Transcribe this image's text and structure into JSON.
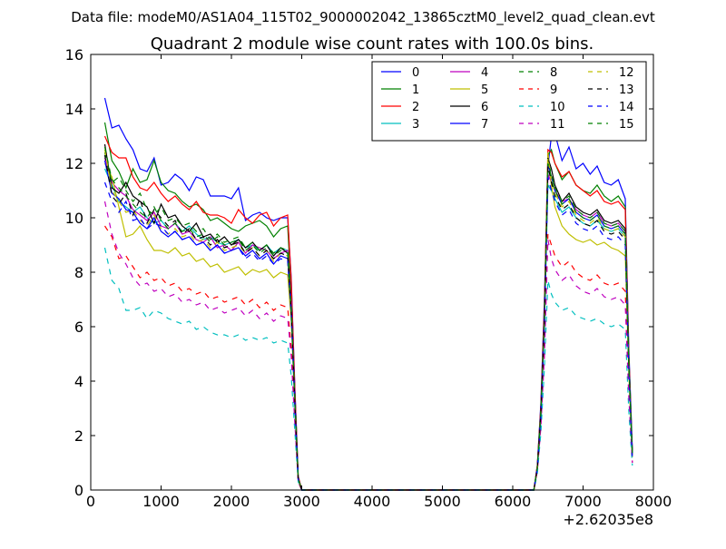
{
  "chart_data": {
    "type": "line",
    "suptitle": "Data file: modeM0/AS1A04_115T02_9000002042_13865cztM0_level2_quad_clean.evt",
    "title": "Quadrant 2 module wise count rates with 100.0s bins.",
    "xlabel": "",
    "ylabel": "",
    "xlim": [
      0,
      8000
    ],
    "ylim": [
      0,
      16
    ],
    "x_offset_label": "+2.62035e8",
    "xticks": [
      0,
      1000,
      2000,
      3000,
      4000,
      5000,
      6000,
      7000,
      8000
    ],
    "yticks": [
      0,
      2,
      4,
      6,
      8,
      10,
      12,
      14,
      16
    ],
    "legend_location": "top-right",
    "x": [
      200,
      300,
      400,
      500,
      600,
      700,
      800,
      900,
      1000,
      1100,
      1200,
      1300,
      1400,
      1500,
      1600,
      1700,
      1800,
      1900,
      2000,
      2100,
      2200,
      2300,
      2400,
      2500,
      2600,
      2700,
      2800,
      2850,
      2900,
      2950,
      3000,
      3100,
      6300,
      6350,
      6400,
      6450,
      6500,
      6550,
      6600,
      6700,
      6800,
      6900,
      7000,
      7100,
      7200,
      7300,
      7400,
      7500,
      7600,
      7650,
      7700
    ],
    "series": [
      {
        "name": "0",
        "color": "#0000ff",
        "dash": "solid",
        "values": [
          14.4,
          13.3,
          13.4,
          12.9,
          12.5,
          11.8,
          11.7,
          12.2,
          11.2,
          11.3,
          11.6,
          11.4,
          11.0,
          11.5,
          11.4,
          10.8,
          10.8,
          10.8,
          10.7,
          11.1,
          9.9,
          10.1,
          10.2,
          10.0,
          9.9,
          10.0,
          10.0,
          7.8,
          3.9,
          0.5,
          0,
          0,
          0,
          0.9,
          3.2,
          7.0,
          11.9,
          13.0,
          13.1,
          12.1,
          12.6,
          11.8,
          12.0,
          11.6,
          11.9,
          11.3,
          11.2,
          11.4,
          10.7,
          5.2,
          1.5
        ]
      },
      {
        "name": "1",
        "color": "#008000",
        "dash": "solid",
        "values": [
          13.5,
          12.1,
          11.7,
          11.1,
          11.8,
          11.3,
          11.4,
          12.1,
          11.3,
          11.0,
          10.9,
          10.6,
          10.4,
          10.5,
          10.3,
          9.9,
          10.0,
          9.8,
          9.6,
          9.5,
          9.7,
          9.8,
          9.9,
          9.7,
          9.3,
          9.6,
          9.7,
          7.3,
          3.7,
          0.5,
          0,
          0,
          0,
          0.9,
          3.0,
          6.5,
          12.3,
          12.5,
          12.0,
          11.4,
          11.7,
          11.2,
          11.0,
          10.9,
          11.2,
          10.8,
          10.6,
          10.8,
          10.4,
          5.0,
          1.4
        ]
      },
      {
        "name": "2",
        "color": "#ff0000",
        "dash": "solid",
        "values": [
          13.0,
          12.4,
          12.2,
          12.2,
          11.5,
          11.1,
          11.0,
          11.3,
          10.9,
          10.6,
          10.8,
          10.5,
          10.3,
          10.6,
          10.2,
          10.1,
          10.1,
          10.0,
          9.8,
          10.3,
          10.0,
          9.8,
          10.1,
          10.2,
          9.7,
          10.0,
          10.1,
          7.7,
          3.8,
          0.5,
          0,
          0,
          0,
          0.9,
          3.1,
          6.8,
          12.5,
          12.4,
          12.0,
          11.5,
          11.7,
          11.2,
          11.0,
          10.8,
          11.0,
          10.6,
          10.5,
          10.6,
          10.3,
          5.0,
          1.4
        ]
      },
      {
        "name": "3",
        "color": "#00bfbf",
        "dash": "solid",
        "values": [
          11.8,
          11.2,
          10.6,
          10.4,
          10.2,
          10.4,
          10.0,
          9.8,
          9.9,
          9.6,
          9.8,
          9.5,
          9.7,
          9.4,
          9.2,
          9.3,
          9.1,
          9.0,
          9.1,
          9.2,
          8.9,
          9.0,
          8.8,
          9.0,
          8.7,
          8.9,
          8.8,
          6.8,
          3.4,
          0.4,
          0,
          0,
          0,
          0.8,
          2.9,
          6.2,
          11.2,
          11.0,
          10.7,
          10.2,
          10.4,
          10.0,
          9.8,
          9.7,
          9.9,
          9.6,
          9.5,
          9.6,
          9.3,
          4.6,
          1.3
        ]
      },
      {
        "name": "4",
        "color": "#bf00bf",
        "dash": "solid",
        "values": [
          12.2,
          11.3,
          11.0,
          10.8,
          10.3,
          10.1,
          9.9,
          10.2,
          9.7,
          9.6,
          9.8,
          9.4,
          9.5,
          9.2,
          9.1,
          9.3,
          8.9,
          9.0,
          8.8,
          9.1,
          8.7,
          9.0,
          8.9,
          8.8,
          8.5,
          8.7,
          8.8,
          6.9,
          3.5,
          0.4,
          0,
          0,
          0,
          0.8,
          2.9,
          6.4,
          11.6,
          11.3,
          11.0,
          10.6,
          10.7,
          10.3,
          10.1,
          10.0,
          10.2,
          9.8,
          9.7,
          9.8,
          9.5,
          4.7,
          1.3
        ]
      },
      {
        "name": "5",
        "color": "#bfbf00",
        "dash": "solid",
        "values": [
          12.0,
          11.5,
          10.4,
          9.3,
          9.4,
          9.7,
          9.2,
          8.8,
          8.8,
          8.7,
          8.9,
          8.6,
          8.7,
          8.4,
          8.5,
          8.2,
          8.3,
          8.0,
          8.1,
          8.2,
          7.9,
          8.1,
          8.0,
          8.1,
          7.8,
          8.0,
          7.9,
          6.2,
          3.2,
          0.4,
          0,
          0,
          0,
          0.8,
          2.8,
          6.0,
          12.4,
          11.2,
          10.4,
          9.7,
          9.4,
          9.2,
          9.1,
          9.2,
          9.0,
          9.1,
          8.9,
          8.8,
          8.6,
          4.3,
          1.2
        ]
      },
      {
        "name": "6",
        "color": "#000000",
        "dash": "solid",
        "values": [
          12.7,
          11.1,
          10.9,
          11.3,
          10.8,
          10.6,
          10.4,
          9.8,
          10.5,
          10.0,
          10.1,
          9.7,
          9.5,
          9.8,
          9.3,
          9.4,
          9.1,
          9.3,
          9.0,
          9.2,
          8.9,
          9.1,
          8.8,
          9.0,
          8.6,
          8.9,
          8.7,
          6.6,
          3.3,
          0.4,
          0,
          0,
          0,
          0.8,
          2.9,
          6.3,
          12.2,
          11.8,
          11.2,
          10.6,
          10.9,
          10.4,
          10.2,
          10.1,
          10.3,
          9.9,
          9.8,
          9.9,
          9.6,
          4.7,
          1.3
        ]
      },
      {
        "name": "7",
        "color": "#0000ff",
        "dash": "solid",
        "values": [
          12.1,
          10.9,
          10.7,
          10.3,
          10.2,
          9.8,
          9.6,
          10.0,
          9.5,
          9.3,
          9.5,
          9.2,
          9.3,
          9.0,
          9.1,
          8.8,
          9.0,
          8.7,
          8.8,
          8.9,
          8.6,
          8.8,
          8.5,
          8.7,
          8.3,
          8.6,
          8.5,
          6.5,
          3.3,
          0.4,
          0,
          0,
          0,
          0.8,
          2.8,
          6.1,
          12.0,
          11.5,
          11.0,
          10.5,
          10.7,
          10.2,
          10.0,
          9.9,
          10.1,
          9.7,
          9.6,
          9.7,
          9.4,
          4.6,
          1.3
        ]
      },
      {
        "name": "8",
        "color": "#008000",
        "dash": "dashed",
        "values": [
          12.4,
          11.3,
          11.5,
          11.0,
          10.6,
          10.9,
          10.3,
          10.1,
          10.4,
          9.9,
          10.0,
          9.7,
          9.8,
          9.5,
          9.6,
          9.2,
          9.4,
          9.1,
          9.2,
          9.3,
          8.9,
          9.1,
          8.8,
          9.0,
          8.7,
          8.9,
          8.8,
          6.8,
          3.4,
          0.4,
          0,
          0,
          0,
          0.8,
          2.9,
          6.3,
          12.1,
          11.6,
          11.1,
          10.6,
          10.8,
          10.3,
          10.1,
          10.0,
          10.2,
          9.8,
          9.7,
          9.8,
          9.5,
          4.7,
          1.3
        ]
      },
      {
        "name": "9",
        "color": "#ff0000",
        "dash": "dashed",
        "values": [
          9.7,
          9.3,
          8.5,
          8.6,
          8.2,
          7.8,
          8.0,
          7.7,
          7.8,
          7.5,
          7.6,
          7.3,
          7.4,
          7.2,
          7.3,
          7.0,
          7.1,
          6.9,
          7.0,
          7.1,
          6.8,
          7.0,
          6.7,
          6.9,
          6.6,
          6.8,
          6.7,
          5.2,
          2.7,
          0.3,
          0,
          0,
          0,
          0.7,
          2.4,
          5.2,
          9.4,
          9.0,
          8.6,
          8.2,
          8.4,
          8.0,
          7.8,
          7.7,
          7.9,
          7.6,
          7.5,
          7.6,
          7.3,
          3.6,
          1.0
        ]
      },
      {
        "name": "10",
        "color": "#00bfbf",
        "dash": "dashed",
        "values": [
          8.9,
          7.7,
          7.4,
          6.6,
          6.6,
          6.7,
          6.3,
          6.6,
          6.5,
          6.3,
          6.2,
          6.1,
          6.2,
          5.9,
          6.0,
          5.8,
          5.7,
          5.7,
          5.6,
          5.7,
          5.5,
          5.6,
          5.5,
          5.6,
          5.4,
          5.5,
          5.4,
          4.2,
          2.2,
          0.3,
          0,
          0,
          0,
          0.6,
          2.1,
          4.5,
          7.7,
          7.2,
          6.9,
          6.6,
          6.7,
          6.4,
          6.3,
          6.2,
          6.3,
          6.1,
          6.0,
          6.1,
          5.9,
          2.9,
          0.9
        ]
      },
      {
        "name": "11",
        "color": "#bf00bf",
        "dash": "dashed",
        "values": [
          10.6,
          9.4,
          8.7,
          8.3,
          7.8,
          7.5,
          7.6,
          7.3,
          7.4,
          7.1,
          7.2,
          6.9,
          7.0,
          6.8,
          6.9,
          6.6,
          6.7,
          6.5,
          6.6,
          6.7,
          6.4,
          6.6,
          6.3,
          6.5,
          6.2,
          6.4,
          6.3,
          4.9,
          2.5,
          0.3,
          0,
          0,
          0,
          0.7,
          2.3,
          4.9,
          9.2,
          8.5,
          8.1,
          7.7,
          7.9,
          7.5,
          7.3,
          7.2,
          7.4,
          7.1,
          7.0,
          7.1,
          6.8,
          3.4,
          1.0
        ]
      },
      {
        "name": "12",
        "color": "#bfbf00",
        "dash": "dashed",
        "values": [
          12.5,
          11.0,
          10.6,
          10.2,
          10.3,
          9.9,
          9.7,
          10.1,
          9.6,
          9.4,
          9.6,
          9.3,
          9.4,
          9.1,
          9.2,
          8.9,
          9.1,
          8.8,
          8.9,
          9.0,
          8.7,
          8.9,
          8.6,
          8.8,
          8.4,
          8.7,
          8.6,
          6.6,
          3.3,
          0.4,
          0,
          0,
          0,
          0.8,
          2.8,
          6.2,
          12.2,
          11.4,
          10.9,
          10.4,
          10.6,
          10.1,
          9.9,
          9.8,
          10.0,
          9.6,
          9.5,
          9.6,
          9.3,
          4.6,
          1.3
        ]
      },
      {
        "name": "13",
        "color": "#000000",
        "dash": "dashed",
        "values": [
          12.3,
          10.8,
          10.5,
          10.9,
          10.1,
          10.7,
          9.8,
          10.3,
          10.0,
          9.7,
          9.9,
          9.4,
          9.6,
          9.2,
          9.3,
          9.0,
          9.2,
          8.9,
          9.0,
          9.1,
          8.7,
          8.9,
          8.6,
          8.8,
          8.5,
          8.7,
          8.6,
          6.6,
          3.3,
          0.4,
          0,
          0,
          0,
          0.8,
          2.8,
          6.1,
          11.9,
          11.3,
          10.8,
          10.3,
          10.5,
          10.0,
          9.8,
          9.7,
          9.9,
          9.5,
          9.4,
          9.5,
          9.2,
          4.5,
          1.3
        ]
      },
      {
        "name": "14",
        "color": "#0000ff",
        "dash": "dashed",
        "values": [
          11.3,
          10.6,
          10.2,
          10.6,
          9.9,
          10.0,
          9.6,
          9.8,
          9.7,
          9.4,
          9.5,
          9.2,
          9.3,
          9.0,
          9.1,
          8.8,
          9.0,
          8.7,
          8.8,
          8.9,
          8.5,
          8.7,
          8.4,
          8.6,
          8.3,
          8.5,
          8.4,
          6.5,
          3.2,
          0.4,
          0,
          0,
          0,
          0.8,
          2.7,
          6.0,
          11.5,
          11.0,
          10.6,
          10.1,
          10.3,
          9.8,
          9.6,
          9.5,
          9.7,
          9.3,
          9.2,
          9.3,
          9.0,
          4.4,
          1.2
        ]
      },
      {
        "name": "15",
        "color": "#008000",
        "dash": "dashed",
        "values": [
          12.6,
          11.4,
          11.1,
          10.8,
          10.5,
          10.2,
          10.0,
          10.4,
          9.9,
          9.6,
          9.8,
          9.5,
          9.6,
          9.3,
          9.4,
          9.1,
          9.3,
          9.0,
          9.1,
          9.2,
          8.8,
          9.0,
          8.7,
          8.9,
          8.6,
          8.8,
          8.7,
          6.7,
          3.4,
          0.4,
          0,
          0,
          0,
          0.8,
          2.8,
          6.2,
          12.0,
          11.5,
          11.0,
          10.5,
          10.7,
          10.2,
          10.0,
          9.9,
          10.1,
          9.7,
          9.6,
          9.7,
          9.4,
          4.6,
          1.3
        ]
      }
    ]
  }
}
